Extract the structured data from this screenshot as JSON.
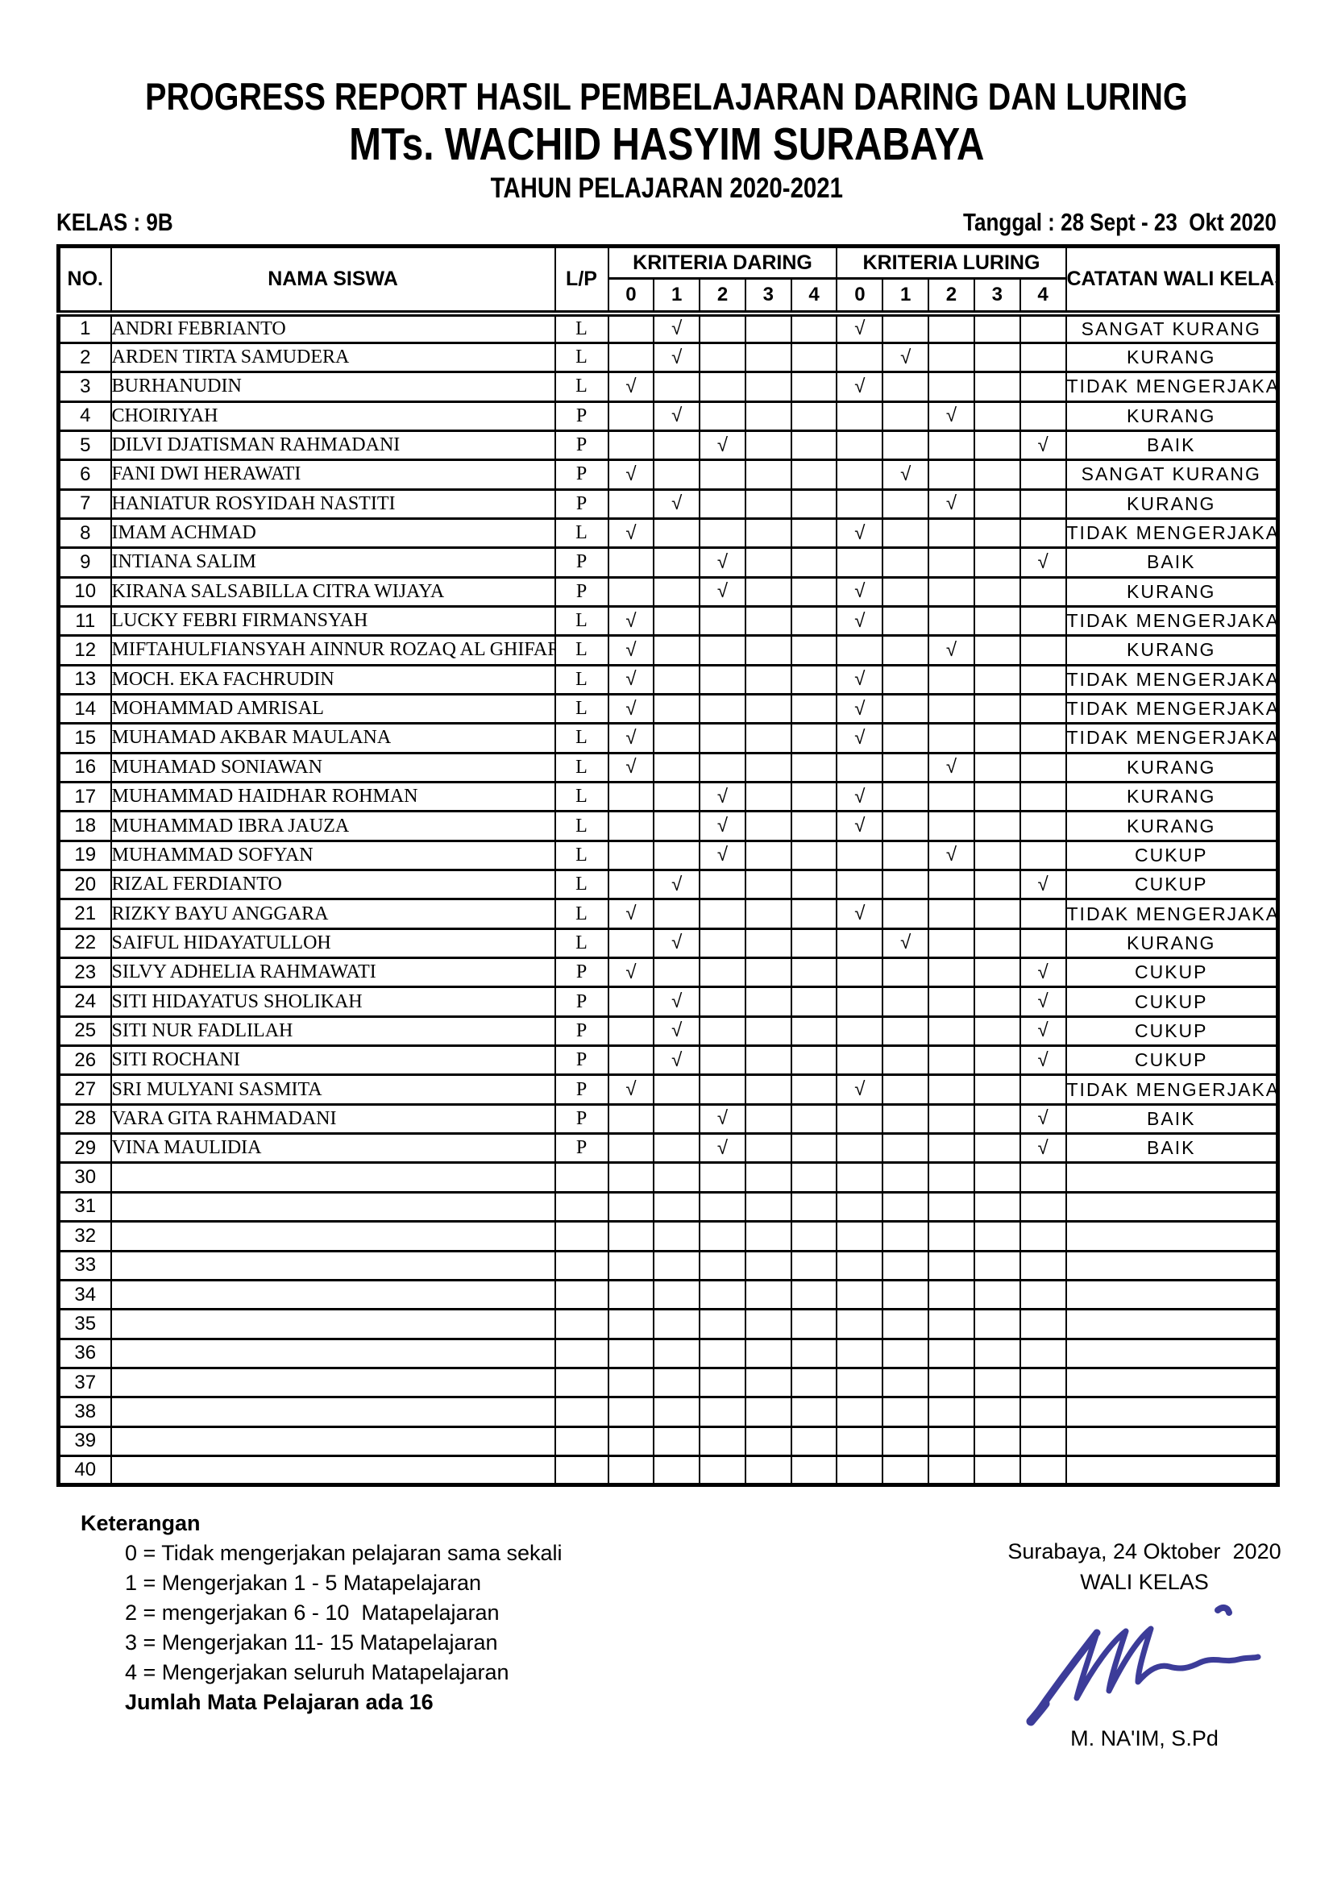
{
  "header": {
    "title_line1": "PROGRESS REPORT HASIL PEMBELAJARAN DARING DAN LURING",
    "title_line2": "MTs. WACHID HASYIM SURABAYA",
    "title_line3": "TAHUN PELAJARAN 2020-2021",
    "kelas": "KELAS : 9B",
    "tanggal": "Tanggal : 28 Sept - 23  Okt 2020"
  },
  "table": {
    "col_no": "NO.",
    "col_nama": "NAMA SISWA",
    "col_lp": "L/P",
    "col_daring": "KRITERIA DARING",
    "col_luring": "KRITERIA LURING",
    "col_catatan": "CATATAN WALI KELAS",
    "kriteria_cols": [
      "0",
      "1",
      "2",
      "3",
      "4"
    ],
    "check_symbol": "√",
    "total_rows": 40,
    "students": [
      {
        "no": 1,
        "nama": "ANDRI FEBRIANTO",
        "lp": "L",
        "daring": 1,
        "luring": 0,
        "catatan": "SANGAT KURANG"
      },
      {
        "no": 2,
        "nama": "ARDEN TIRTA SAMUDERA",
        "lp": "L",
        "daring": 1,
        "luring": 1,
        "catatan": "KURANG"
      },
      {
        "no": 3,
        "nama": "BURHANUDIN",
        "lp": "L",
        "daring": 0,
        "luring": 0,
        "catatan": "TIDAK MENGERJAKAN"
      },
      {
        "no": 4,
        "nama": "CHOIRIYAH",
        "lp": "P",
        "daring": 1,
        "luring": 2,
        "catatan": "KURANG"
      },
      {
        "no": 5,
        "nama": "DILVI DJATISMAN RAHMADANI",
        "lp": "P",
        "daring": 2,
        "luring": 4,
        "catatan": "BAIK"
      },
      {
        "no": 6,
        "nama": "FANI DWI HERAWATI",
        "lp": "P",
        "daring": 0,
        "luring": 1,
        "catatan": "SANGAT KURANG"
      },
      {
        "no": 7,
        "nama": "HANIATUR ROSYIDAH NASTITI",
        "lp": "P",
        "daring": 1,
        "luring": 2,
        "catatan": "KURANG"
      },
      {
        "no": 8,
        "nama": "IMAM ACHMAD",
        "lp": "L",
        "daring": 0,
        "luring": 0,
        "catatan": "TIDAK MENGERJAKAN"
      },
      {
        "no": 9,
        "nama": "INTIANA SALIM",
        "lp": "P",
        "daring": 2,
        "luring": 4,
        "catatan": "BAIK"
      },
      {
        "no": 10,
        "nama": "KIRANA SALSABILLA CITRA WIJAYA",
        "lp": "P",
        "daring": 2,
        "luring": 0,
        "catatan": "KURANG"
      },
      {
        "no": 11,
        "nama": "LUCKY FEBRI FIRMANSYAH",
        "lp": "L",
        "daring": 0,
        "luring": 0,
        "catatan": "TIDAK MENGERJAKAN"
      },
      {
        "no": 12,
        "nama": "MIFTAHULFIANSYAH AINNUR ROZAQ AL GHIFAR",
        "lp": "L",
        "daring": 0,
        "luring": 2,
        "catatan": "KURANG"
      },
      {
        "no": 13,
        "nama": "MOCH. EKA FACHRUDIN",
        "lp": "L",
        "daring": 0,
        "luring": 0,
        "catatan": "TIDAK MENGERJAKAN"
      },
      {
        "no": 14,
        "nama": "MOHAMMAD AMRISAL",
        "lp": "L",
        "daring": 0,
        "luring": 0,
        "catatan": "TIDAK MENGERJAKAN"
      },
      {
        "no": 15,
        "nama": "MUHAMAD AKBAR MAULANA",
        "lp": "L",
        "daring": 0,
        "luring": 0,
        "catatan": "TIDAK MENGERJAKAN"
      },
      {
        "no": 16,
        "nama": "MUHAMAD SONIAWAN",
        "lp": "L",
        "daring": 0,
        "luring": 2,
        "catatan": "KURANG"
      },
      {
        "no": 17,
        "nama": "MUHAMMAD HAIDHAR ROHMAN",
        "lp": "L",
        "daring": 2,
        "luring": 0,
        "catatan": "KURANG"
      },
      {
        "no": 18,
        "nama": "MUHAMMAD IBRA JAUZA",
        "lp": "L",
        "daring": 2,
        "luring": 0,
        "catatan": "KURANG"
      },
      {
        "no": 19,
        "nama": "MUHAMMAD SOFYAN",
        "lp": "L",
        "daring": 2,
        "luring": 2,
        "catatan": "CUKUP"
      },
      {
        "no": 20,
        "nama": "RIZAL FERDIANTO",
        "lp": "L",
        "daring": 1,
        "luring": 4,
        "catatan": "CUKUP"
      },
      {
        "no": 21,
        "nama": "RIZKY BAYU ANGGARA",
        "lp": "L",
        "daring": 0,
        "luring": 0,
        "catatan": "TIDAK MENGERJAKAN"
      },
      {
        "no": 22,
        "nama": "SAIFUL HIDAYATULLOH",
        "lp": "L",
        "daring": 1,
        "luring": 1,
        "catatan": "KURANG"
      },
      {
        "no": 23,
        "nama": "SILVY ADHELIA RAHMAWATI",
        "lp": "P",
        "daring": 0,
        "luring": 4,
        "catatan": "CUKUP"
      },
      {
        "no": 24,
        "nama": "SITI HIDAYATUS SHOLIKAH",
        "lp": "P",
        "daring": 1,
        "luring": 4,
        "catatan": "CUKUP"
      },
      {
        "no": 25,
        "nama": "SITI NUR FADLILAH",
        "lp": "P",
        "daring": 1,
        "luring": 4,
        "catatan": "CUKUP"
      },
      {
        "no": 26,
        "nama": "SITI ROCHANI",
        "lp": "P",
        "daring": 1,
        "luring": 4,
        "catatan": "CUKUP"
      },
      {
        "no": 27,
        "nama": "SRI MULYANI SASMITA",
        "lp": "P",
        "daring": 0,
        "luring": 0,
        "catatan": "TIDAK MENGERJAKAN"
      },
      {
        "no": 28,
        "nama": "VARA GITA RAHMADANI",
        "lp": "P",
        "daring": 2,
        "luring": 4,
        "catatan": "BAIK"
      },
      {
        "no": 29,
        "nama": "VINA MAULIDIA",
        "lp": "P",
        "daring": 2,
        "luring": 4,
        "catatan": "BAIK"
      }
    ]
  },
  "footer": {
    "keterangan_title": "Keterangan",
    "items": [
      "0 = Tidak mengerjakan pelajaran sama sekali",
      "1 = Mengerjakan 1 - 5 Matapelajaran",
      "2 = mengerjakan 6 - 10  Matapelajaran",
      "3 = Mengerjakan 11- 15 Matapelajaran",
      "4 = Mengerjakan seluruh Matapelajaran"
    ],
    "jumlah": "Jumlah Mata Pelajaran ada 16",
    "city_date": "Surabaya, 24 Oktober  2020",
    "role": "WALI KELAS",
    "signer": "M. NA'IM, S.Pd",
    "signature_color": "#3c3c99"
  }
}
